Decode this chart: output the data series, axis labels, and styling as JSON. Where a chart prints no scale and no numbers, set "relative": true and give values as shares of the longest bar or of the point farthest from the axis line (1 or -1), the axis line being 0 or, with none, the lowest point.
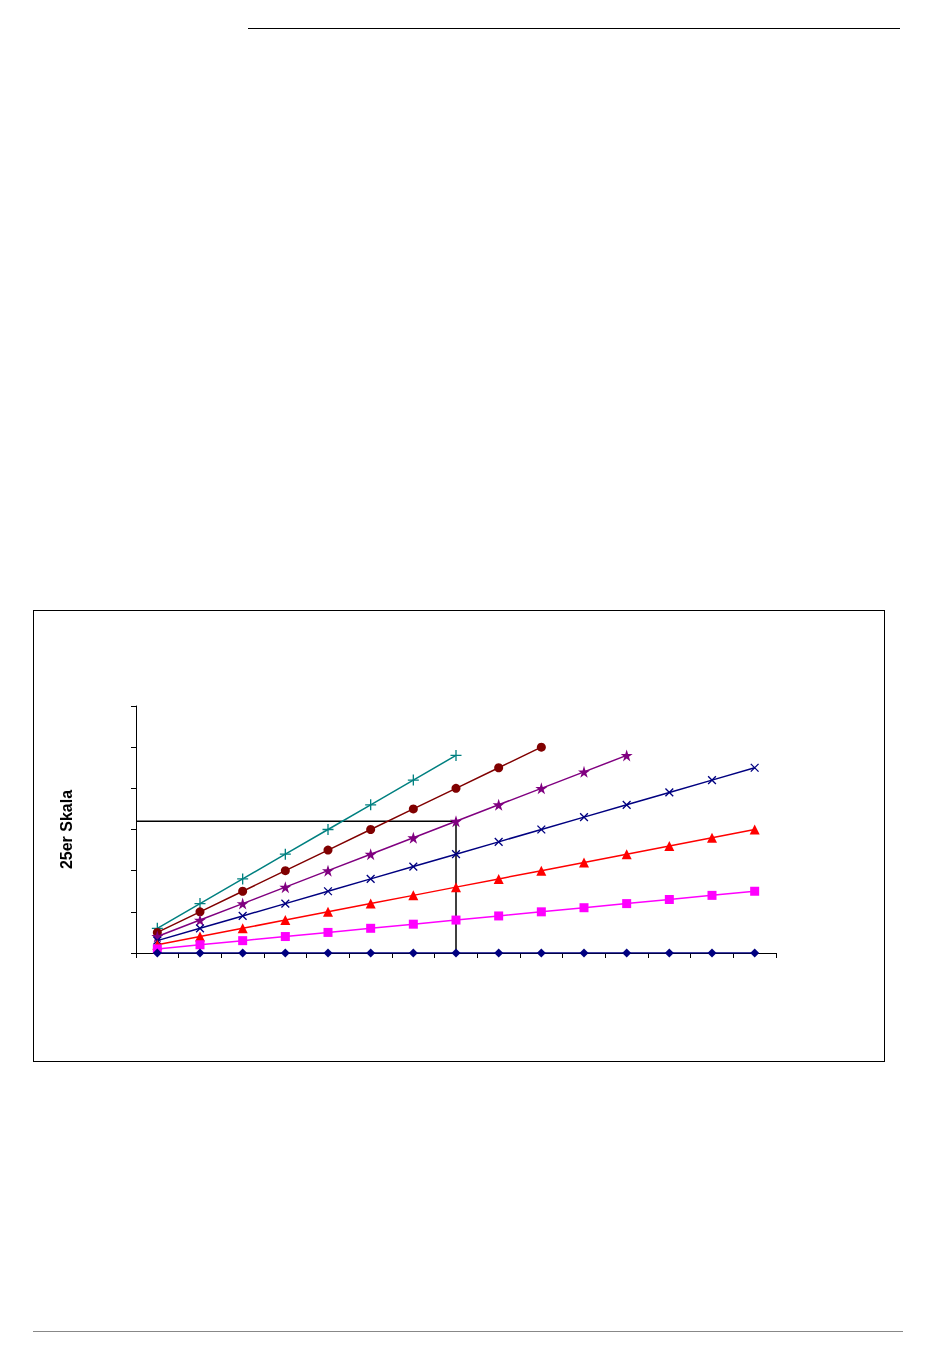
{
  "chart_data": {
    "type": "line",
    "ylabel": "25er Skala",
    "relative": true,
    "grid": false,
    "categories": [
      null,
      null,
      null,
      null,
      null,
      null,
      null,
      null,
      null,
      null,
      null,
      null,
      null,
      null,
      null
    ],
    "ref_lines": [
      {
        "axis": "y",
        "value": 0.64,
        "color": "#000000"
      }
    ],
    "series": [
      {
        "color": "#000080",
        "marker": "diamond",
        "values": [
          0,
          0,
          0,
          0,
          0,
          0,
          0,
          0,
          0,
          0,
          0,
          0,
          0,
          0,
          0
        ]
      },
      {
        "color": "#ff00ff",
        "marker": "square",
        "values": [
          0.02,
          0.04,
          0.06,
          0.08,
          0.1,
          0.12,
          0.14,
          0.16,
          0.18,
          0.2,
          0.22,
          0.24,
          0.26,
          0.28,
          0.3
        ]
      },
      {
        "color": "#ff0000",
        "marker": "triangle",
        "values": [
          0.04,
          0.08,
          0.12,
          0.16,
          0.2,
          0.24,
          0.28,
          0.32,
          0.36,
          0.4,
          0.44,
          0.48,
          0.52,
          0.56,
          0.6
        ]
      },
      {
        "color": "#000080",
        "marker": "cross",
        "values": [
          0.06,
          0.12,
          0.18,
          0.24,
          0.3,
          0.36,
          0.42,
          0.48,
          0.54,
          0.6,
          0.66,
          0.72,
          0.78,
          0.84,
          0.9
        ]
      },
      {
        "color": "#800080",
        "marker": "star",
        "values": [
          0.08,
          0.16,
          0.24,
          0.32,
          0.4,
          0.48,
          0.56,
          0.64,
          0.72,
          0.8,
          0.88,
          0.96,
          null,
          null,
          null
        ]
      },
      {
        "color": "#800000",
        "marker": "circle",
        "values": [
          0.1,
          0.2,
          0.3,
          0.4,
          0.5,
          0.6,
          0.7,
          0.8,
          0.9,
          1.0,
          null,
          null,
          null,
          null,
          null
        ]
      },
      {
        "color": "#008080",
        "marker": "cross",
        "values": [
          0.12,
          0.24,
          0.36,
          0.48,
          0.6,
          0.72,
          0.84,
          0.96,
          null,
          null,
          null,
          null,
          null,
          null,
          null
        ]
      }
    ]
  }
}
